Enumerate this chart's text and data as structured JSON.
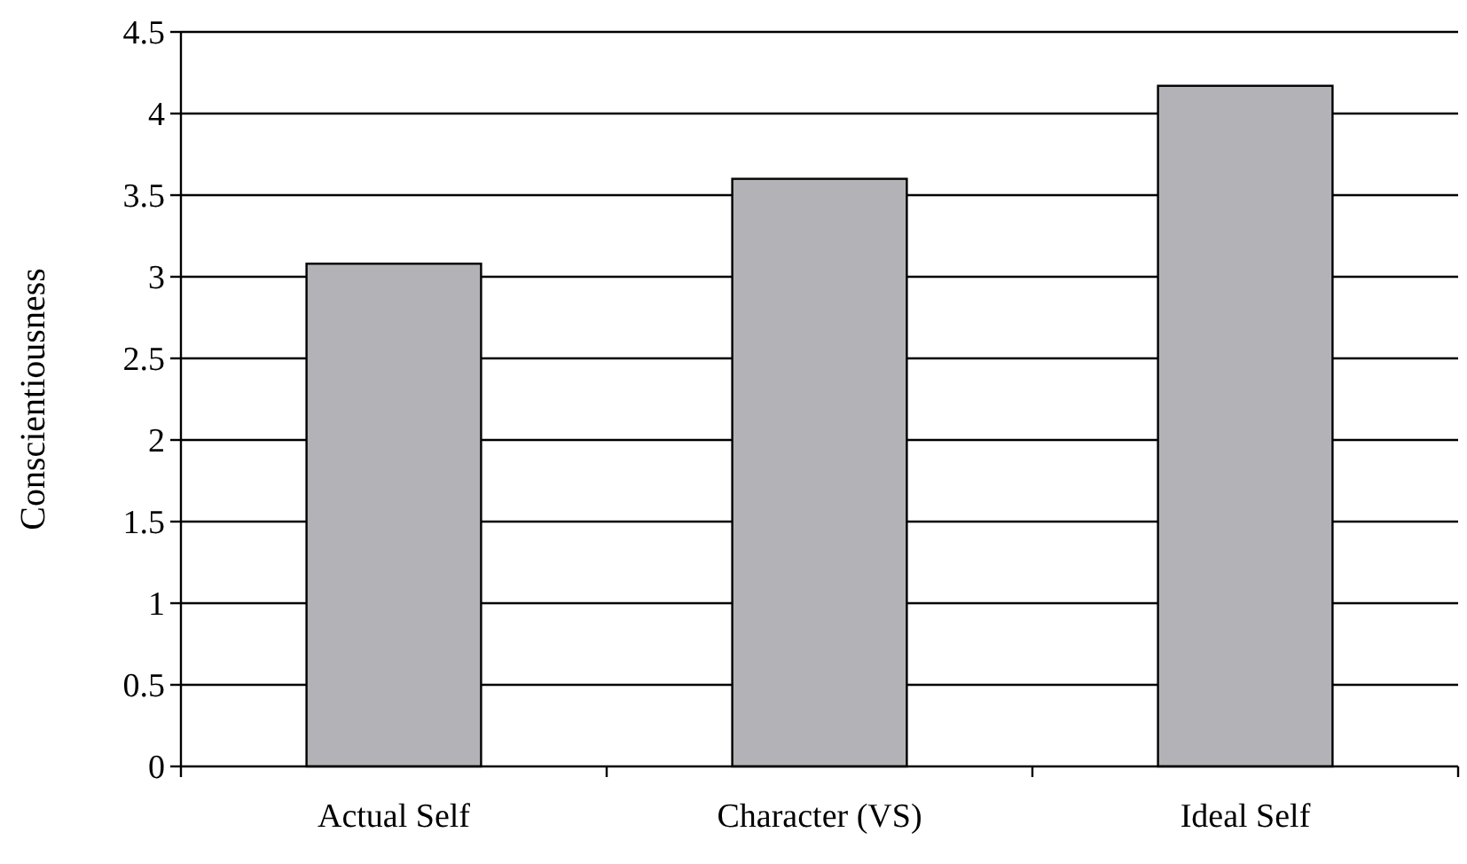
{
  "chart_data": {
    "type": "bar",
    "ylabel": "Conscientiousness",
    "categories": [
      "Actual Self",
      "Character (VS)",
      "Ideal Self"
    ],
    "values": [
      3.08,
      3.6,
      4.17
    ],
    "color": "#b3b3b7",
    "ylim": [
      0,
      4.5
    ],
    "yticks": [
      0,
      0.5,
      1,
      1.5,
      2,
      2.5,
      3,
      3.5,
      4,
      4.5
    ],
    "grid": "y"
  }
}
